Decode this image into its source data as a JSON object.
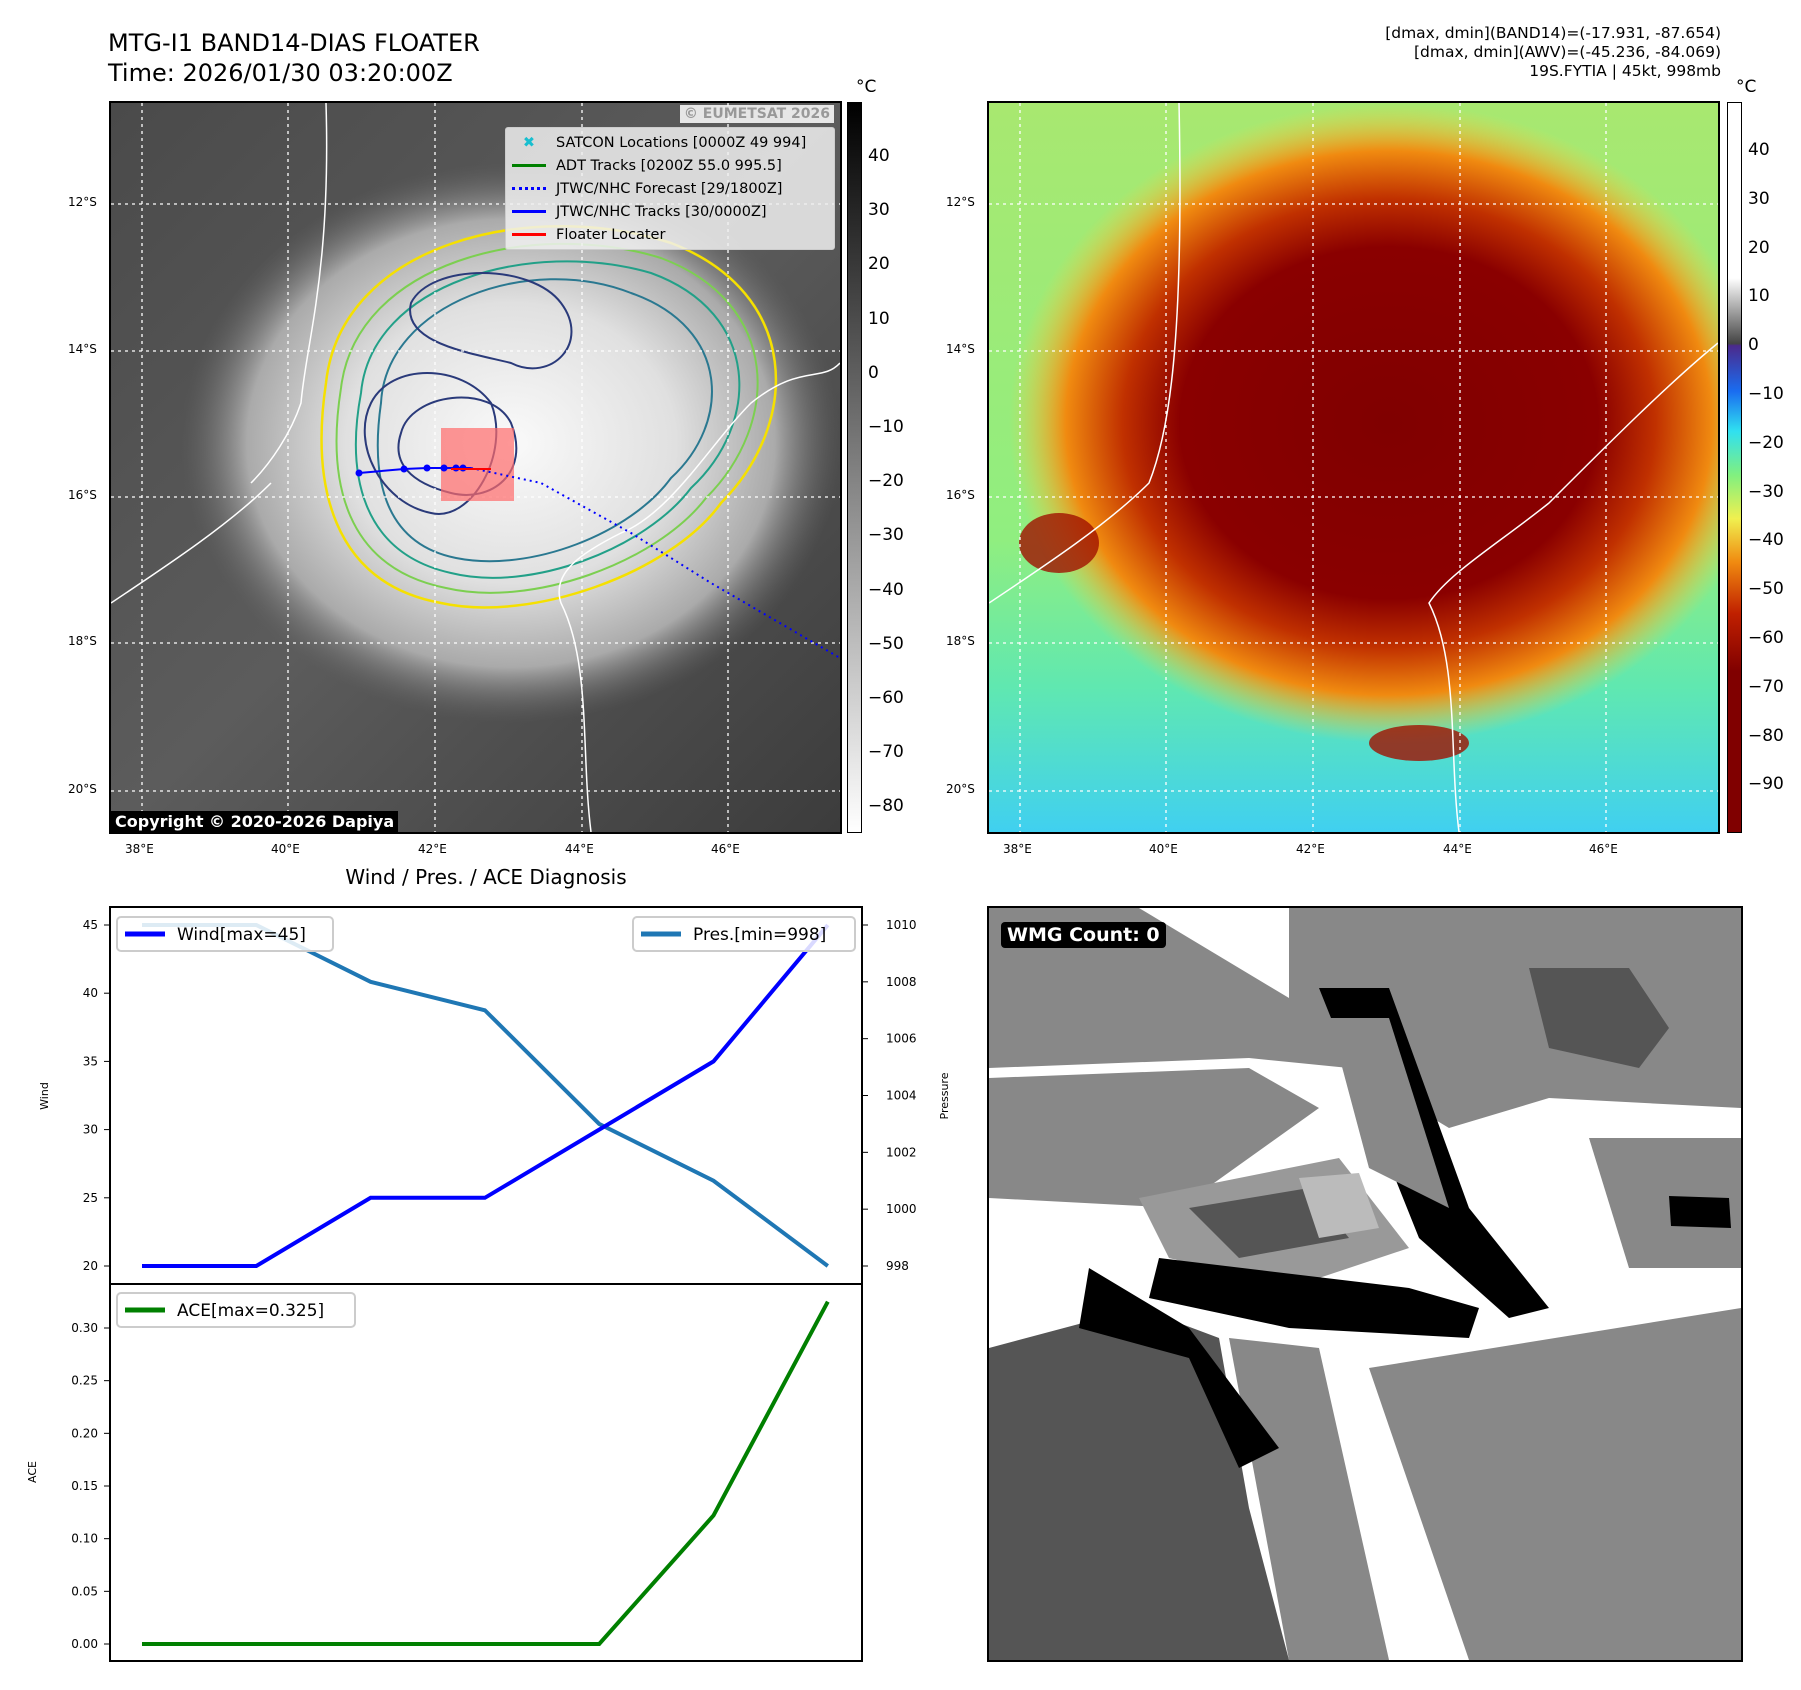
{
  "left_map": {
    "title": "MTG-I1 BAND14-DIAS FLOATER",
    "time": "Time: 2026/01/30 03:20:00Z",
    "unit": "°C",
    "copyright": "Copyright © 2020-2026 Dapiya",
    "watermark": "© EUMETSAT 2026",
    "lat_ticks": [
      "12°S",
      "14°S",
      "16°S",
      "18°S",
      "20°S"
    ],
    "lon_ticks": [
      "38°E",
      "40°E",
      "42°E",
      "44°E",
      "46°E"
    ],
    "colorbar_ticks": [
      "40",
      "30",
      "20",
      "10",
      "0",
      "−10",
      "−20",
      "−30",
      "−40",
      "−50",
      "−60",
      "−70",
      "−80"
    ],
    "legend": [
      {
        "label": "SATCON Locations [0000Z 49 994]",
        "color": "#17becf",
        "style": "x-marker"
      },
      {
        "label": "ADT Tracks [0200Z 55.0 995.5]",
        "color": "#008000",
        "style": "line"
      },
      {
        "label": "JTWC/NHC Forecast [29/1800Z]",
        "color": "#0000ff",
        "style": "dotted"
      },
      {
        "label": "JTWC/NHC Tracks [30/0000Z]",
        "color": "#0000ff",
        "style": "line-marker"
      },
      {
        "label": "Floater Locater",
        "color": "#ff0000",
        "style": "line"
      }
    ]
  },
  "right_map": {
    "info": [
      "[dmax, dmin](BAND14)=(-17.931, -87.654)",
      "[dmax, dmin](AWV)=(-45.236, -84.069)",
      "19S.FYTIA | 45kt, 998mb"
    ],
    "unit": "°C",
    "lat_ticks": [
      "12°S",
      "14°S",
      "16°S",
      "18°S",
      "20°S"
    ],
    "lon_ticks": [
      "38°E",
      "40°E",
      "42°E",
      "44°E",
      "46°E"
    ],
    "colorbar_ticks": [
      "40",
      "30",
      "20",
      "10",
      "0",
      "−10",
      "−20",
      "−30",
      "−40",
      "−50",
      "−60",
      "−70",
      "−80",
      "−90"
    ]
  },
  "chart_data": [
    {
      "type": "line",
      "title": "Wind / Pres. / ACE Diagnosis",
      "x": [
        0,
        1,
        2,
        3,
        4,
        5,
        6
      ],
      "series": [
        {
          "name": "Wind[max=45]",
          "axis": "left",
          "color": "#0000ff",
          "values": [
            20,
            20,
            25,
            25,
            30,
            35,
            45
          ]
        },
        {
          "name": "Pres.[min=998]",
          "axis": "right",
          "color": "#1f77b4",
          "values": [
            1010,
            1010,
            1008,
            1007,
            1003,
            1001,
            998
          ]
        }
      ],
      "ylabel": "Wind",
      "y2label": "Pressure",
      "ylim": [
        19,
        46.2
      ],
      "y2lim": [
        997.6,
        1010.5
      ],
      "yticks": [
        "20",
        "25",
        "30",
        "35",
        "40",
        "45"
      ],
      "y2ticks": [
        "998",
        "1000",
        "1002",
        "1004",
        "1006",
        "1008",
        "1010"
      ],
      "legend": [
        "top-left",
        "top-right"
      ]
    },
    {
      "type": "line",
      "x": [
        0,
        1,
        2,
        3,
        4,
        5,
        6
      ],
      "series": [
        {
          "name": "ACE[max=0.325]",
          "color": "#008000",
          "values": [
            0,
            0,
            0,
            0,
            0,
            0.122,
            0.325
          ]
        }
      ],
      "ylabel": "ACE",
      "ylim": [
        -0.016,
        0.341
      ],
      "yticks": [
        "0.00",
        "0.05",
        "0.10",
        "0.15",
        "0.20",
        "0.25",
        "0.30"
      ],
      "legend": "top-left"
    }
  ],
  "wmg": {
    "label": "WMG Count: 0"
  }
}
